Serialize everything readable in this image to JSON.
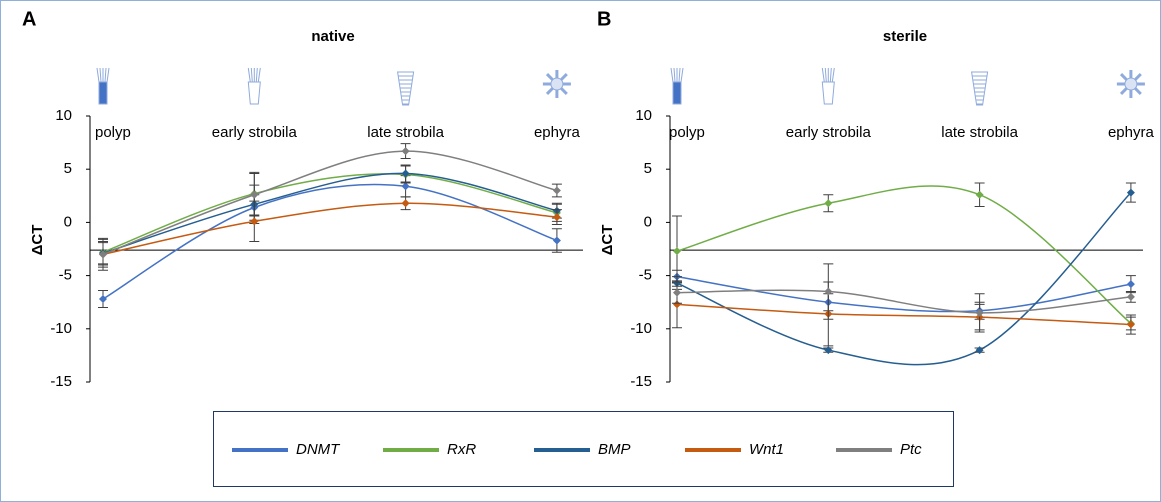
{
  "chart_data": [
    {
      "type": "line",
      "panel": "A",
      "title": "native",
      "y_label": "ΔCT",
      "categories": [
        "polyp",
        "early strobila",
        "late strobila",
        "ephyra"
      ],
      "ylim": [
        -15,
        10
      ],
      "yticks": [
        10,
        5,
        0,
        -5,
        -10,
        -15
      ],
      "xaxis_at": -2.6,
      "series": [
        {
          "name": "DNMT",
          "color": "#4472c4",
          "values": [
            -7.2,
            1.4,
            3.4,
            -1.7
          ],
          "errors": [
            0.8,
            1.2,
            1.0,
            1.1
          ]
        },
        {
          "name": "RxR",
          "color": "#70ad47",
          "values": [
            -2.8,
            2.7,
            4.5,
            0.9
          ],
          "errors": [
            1.2,
            2.0,
            0.8,
            0.8
          ]
        },
        {
          "name": "BMP",
          "color": "#255e91",
          "values": [
            -2.9,
            1.7,
            4.6,
            1.1
          ],
          "errors": [
            1.0,
            1.8,
            0.8,
            0.7
          ]
        },
        {
          "name": "Wnt1",
          "color": "#c55a11",
          "values": [
            -3.0,
            0.1,
            1.8,
            0.5
          ],
          "errors": [
            1.2,
            1.9,
            0.6,
            0.7
          ]
        },
        {
          "name": "Ptc",
          "color": "#7f7f7f",
          "values": [
            -3.0,
            2.6,
            6.7,
            3.0
          ],
          "errors": [
            1.5,
            2.0,
            0.7,
            0.6
          ]
        }
      ]
    },
    {
      "type": "line",
      "panel": "B",
      "title": "sterile",
      "y_label": "ΔCT",
      "categories": [
        "polyp",
        "early strobila",
        "late strobila",
        "ephyra"
      ],
      "ylim": [
        -15,
        10
      ],
      "yticks": [
        10,
        5,
        0,
        -5,
        -10,
        -15
      ],
      "xaxis_at": -2.6,
      "series": [
        {
          "name": "DNMT",
          "color": "#4472c4",
          "values": [
            -5.1,
            -7.5,
            -8.3,
            -5.8
          ],
          "errors": [
            0.6,
            0.8,
            0.8,
            0.8
          ]
        },
        {
          "name": "RxR",
          "color": "#70ad47",
          "values": [
            -2.7,
            1.8,
            2.6,
            -9.5
          ],
          "errors": [
            3.3,
            0.8,
            1.1,
            0.6
          ]
        },
        {
          "name": "BMP",
          "color": "#255e91",
          "values": [
            -5.7,
            -12.0,
            -12.0,
            2.8
          ],
          "errors": [
            0.6,
            0.2,
            0.2,
            0.9
          ]
        },
        {
          "name": "Wnt1",
          "color": "#c55a11",
          "values": [
            -7.7,
            -8.6,
            -8.9,
            -9.6
          ],
          "errors": [
            2.2,
            3.0,
            1.2,
            0.9
          ]
        },
        {
          "name": "Ptc",
          "color": "#7f7f7f",
          "values": [
            -6.6,
            -6.5,
            -8.5,
            -7.0
          ],
          "errors": [
            1.0,
            2.6,
            1.8,
            0.5
          ]
        }
      ]
    }
  ]
}
